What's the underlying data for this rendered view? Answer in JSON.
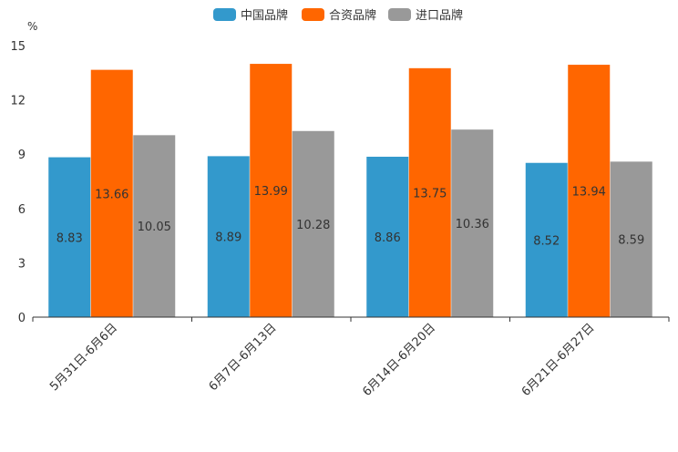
{
  "chart_data": {
    "type": "bar",
    "unit": "%",
    "categories": [
      "5月31日-6月6日",
      "6月7日-6月13日",
      "6月14日-6月20日",
      "6月21日-6月27日"
    ],
    "series": [
      {
        "name": "中国品牌",
        "color": "#3399CC",
        "values": [
          8.83,
          8.89,
          8.86,
          8.52
        ]
      },
      {
        "name": "合资品牌",
        "color": "#FF6600",
        "values": [
          13.66,
          13.99,
          13.75,
          13.94
        ]
      },
      {
        "name": "进口品牌",
        "color": "#999999",
        "values": [
          10.05,
          10.28,
          10.36,
          8.59
        ]
      }
    ],
    "ylim": [
      0,
      15
    ],
    "yticks": [
      "0",
      "3",
      "6",
      "9",
      "12",
      "15"
    ],
    "legend_position": "top-center",
    "grid": false
  }
}
